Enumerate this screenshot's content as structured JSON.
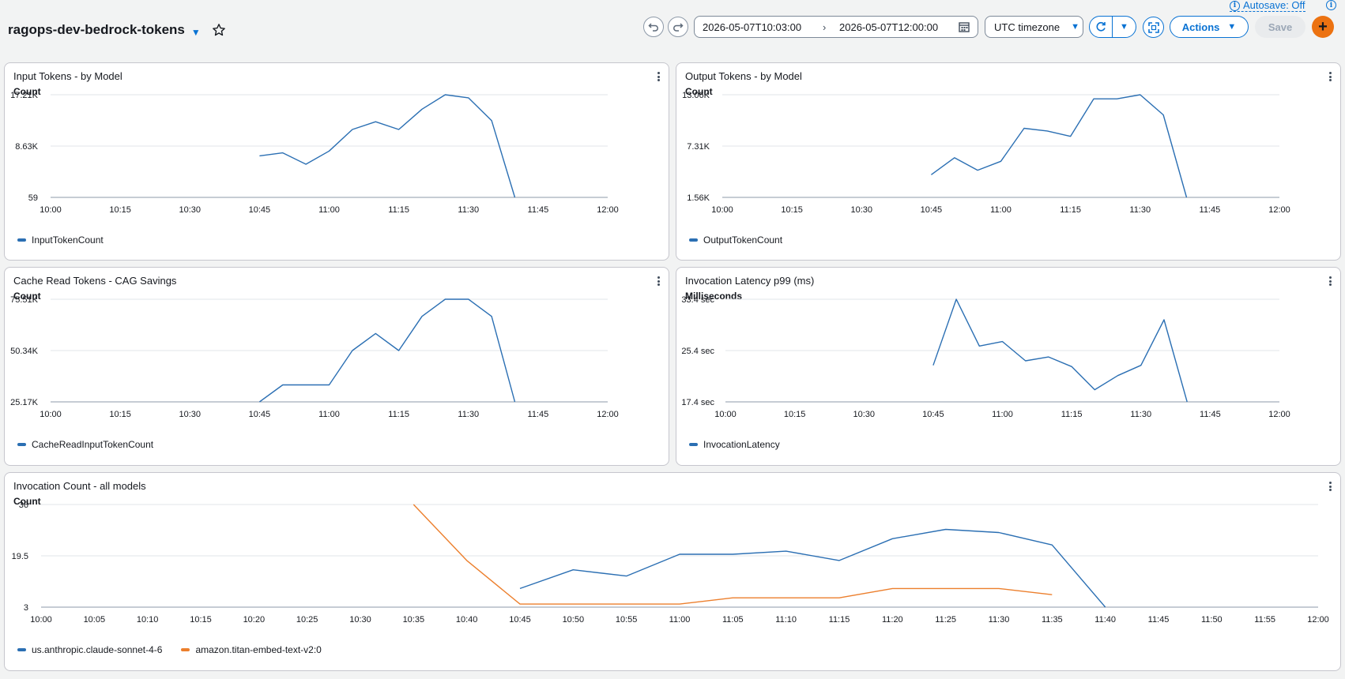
{
  "header": {
    "title": "ragops-dev-bedrock-tokens",
    "autosave_label": "Autosave: Off",
    "date_start": "2026-05-07T10:03:00",
    "date_end": "2026-05-07T12:00:00",
    "timezone": "UTC timezone",
    "actions_label": "Actions",
    "save_label": "Save",
    "add_label": "+"
  },
  "colors": {
    "blue": "#2b6fb3",
    "orange": "#ec7f2d",
    "accent": "#0972d3",
    "add": "#ec7211"
  },
  "widgets": [
    {
      "title": "Input Tokens - by Model",
      "ylabel": "Count",
      "yticks": [
        "17.21K",
        "8.63K",
        "59"
      ],
      "xticks": [
        "10:00",
        "10:15",
        "10:30",
        "10:45",
        "11:00",
        "11:15",
        "11:30",
        "11:45",
        "12:00"
      ],
      "legend": [
        "InputTokenCount"
      ]
    },
    {
      "title": "Output Tokens - by Model",
      "ylabel": "Count",
      "yticks": [
        "13.06K",
        "7.31K",
        "1.56K"
      ],
      "xticks": [
        "10:00",
        "10:15",
        "10:30",
        "10:45",
        "11:00",
        "11:15",
        "11:30",
        "11:45",
        "12:00"
      ],
      "legend": [
        "OutputTokenCount"
      ]
    },
    {
      "title": "Cache Read Tokens - CAG Savings",
      "ylabel": "Count",
      "yticks": [
        "75.51K",
        "50.34K",
        "25.17K"
      ],
      "xticks": [
        "10:00",
        "10:15",
        "10:30",
        "10:45",
        "11:00",
        "11:15",
        "11:30",
        "11:45",
        "12:00"
      ],
      "legend": [
        "CacheReadInputTokenCount"
      ]
    },
    {
      "title": "Invocation Latency p99 (ms)",
      "ylabel": "Milliseconds",
      "yticks": [
        "33.4 sec",
        "25.4 sec",
        "17.4 sec"
      ],
      "xticks": [
        "10:00",
        "10:15",
        "10:30",
        "10:45",
        "11:00",
        "11:15",
        "11:30",
        "11:45",
        "12:00"
      ],
      "legend": [
        "InvocationLatency"
      ]
    },
    {
      "title": "Invocation Count - all models",
      "ylabel": "Count",
      "yticks": [
        "36",
        "19.5",
        "3"
      ],
      "xticks": [
        "10:00",
        "10:05",
        "10:10",
        "10:15",
        "10:20",
        "10:25",
        "10:30",
        "10:35",
        "10:40",
        "10:45",
        "10:50",
        "10:55",
        "11:00",
        "11:05",
        "11:10",
        "11:15",
        "11:20",
        "11:25",
        "11:30",
        "11:35",
        "11:40",
        "11:45",
        "11:50",
        "11:55",
        "12:00"
      ],
      "legend": [
        "us.anthropic.claude-sonnet-4-6",
        "amazon.titan-embed-text-v2:0"
      ]
    }
  ],
  "chart_data": [
    {
      "type": "line",
      "title": "Input Tokens - by Model",
      "ylabel": "Count",
      "xlim": [
        "10:00",
        "12:00"
      ],
      "ylim": [
        59,
        17210
      ],
      "series": [
        {
          "name": "InputTokenCount",
          "x": [
            "10:45",
            "10:50",
            "10:55",
            "11:00",
            "11:05",
            "11:10",
            "11:15",
            "11:20",
            "11:25",
            "11:30",
            "11:35",
            "11:40"
          ],
          "y": [
            7000,
            7500,
            5600,
            7800,
            11400,
            12700,
            11400,
            14800,
            17210,
            16700,
            12900,
            59
          ]
        }
      ]
    },
    {
      "type": "line",
      "title": "Output Tokens - by Model",
      "ylabel": "Count",
      "xlim": [
        "10:00",
        "12:00"
      ],
      "ylim": [
        1560,
        13060
      ],
      "series": [
        {
          "name": "OutputTokenCount",
          "x": [
            "10:45",
            "10:50",
            "10:55",
            "11:00",
            "11:05",
            "11:10",
            "11:15",
            "11:20",
            "11:25",
            "11:30",
            "11:35",
            "11:40"
          ],
          "y": [
            4100,
            6000,
            4600,
            5600,
            9300,
            9000,
            8400,
            12600,
            12600,
            13060,
            10800,
            1560
          ]
        }
      ]
    },
    {
      "type": "line",
      "title": "Cache Read Tokens - CAG Savings",
      "ylabel": "Count",
      "xlim": [
        "10:00",
        "12:00"
      ],
      "ylim": [
        25170,
        75510
      ],
      "series": [
        {
          "name": "CacheReadInputTokenCount",
          "x": [
            "10:45",
            "10:50",
            "10:55",
            "11:00",
            "11:05",
            "11:10",
            "11:15",
            "11:20",
            "11:25",
            "11:30",
            "11:35",
            "11:40"
          ],
          "y": [
            25170,
            33500,
            33500,
            33500,
            50340,
            58700,
            50340,
            67100,
            75510,
            75510,
            67100,
            25170
          ]
        }
      ]
    },
    {
      "type": "line",
      "title": "Invocation Latency p99 (ms)",
      "ylabel": "Milliseconds",
      "xlim": [
        "10:00",
        "12:00"
      ],
      "ylim": [
        17.4,
        33.4
      ],
      "series": [
        {
          "name": "InvocationLatency",
          "x": [
            "10:45",
            "10:50",
            "10:55",
            "11:00",
            "11:05",
            "11:10",
            "11:15",
            "11:20",
            "11:25",
            "11:30",
            "11:35",
            "11:40"
          ],
          "y": [
            23.1,
            33.4,
            26.1,
            26.8,
            23.8,
            24.4,
            22.9,
            19.3,
            21.5,
            23.1,
            30.2,
            17.4
          ]
        }
      ]
    },
    {
      "type": "line",
      "title": "Invocation Count - all models",
      "ylabel": "Count",
      "xlim": [
        "10:00",
        "12:00"
      ],
      "ylim": [
        3,
        36
      ],
      "series": [
        {
          "name": "us.anthropic.claude-sonnet-4-6",
          "x": [
            "10:45",
            "10:50",
            "10:55",
            "11:00",
            "11:05",
            "11:10",
            "11:15",
            "11:20",
            "11:25",
            "11:30",
            "11:35",
            "11:40"
          ],
          "y": [
            9,
            15,
            13,
            20,
            20,
            21,
            18,
            25,
            28,
            27,
            23,
            3
          ]
        },
        {
          "name": "amazon.titan-embed-text-v2:0",
          "x": [
            "10:35",
            "10:40",
            "10:45",
            "10:50",
            "10:55",
            "11:00",
            "11:05",
            "11:10",
            "11:15",
            "11:20",
            "11:25",
            "11:30",
            "11:35"
          ],
          "y": [
            36,
            18,
            4,
            4,
            4,
            4,
            6,
            6,
            6,
            9,
            9,
            9,
            7
          ]
        }
      ]
    }
  ]
}
